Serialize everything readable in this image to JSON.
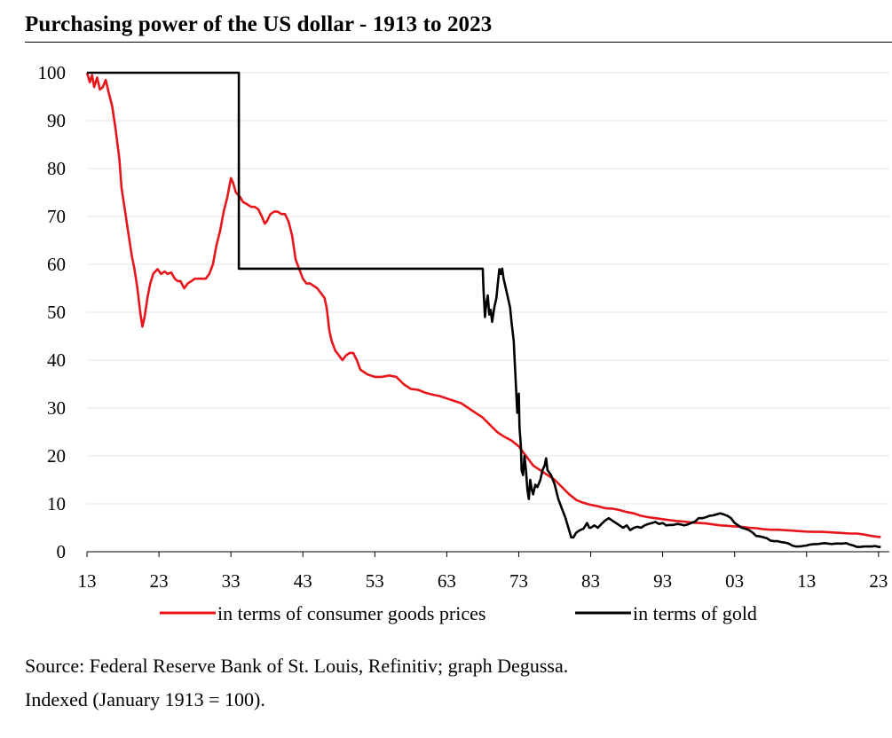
{
  "chart_data": {
    "type": "line",
    "title": "Purchasing power of the US dollar - 1913 to 2023",
    "xlabel": "",
    "ylabel": "",
    "xlim": [
      1913,
      2024.5
    ],
    "ylim": [
      0,
      100
    ],
    "x_ticks": [
      1913,
      1923,
      1933,
      1943,
      1953,
      1963,
      1973,
      1983,
      1993,
      2003,
      2013,
      2023
    ],
    "x_tick_labels": [
      "13",
      "23",
      "33",
      "43",
      "53",
      "63",
      "73",
      "83",
      "93",
      "03",
      "13",
      "23"
    ],
    "y_ticks": [
      0,
      10,
      20,
      30,
      40,
      50,
      60,
      70,
      80,
      90,
      100
    ],
    "y_tick_labels": [
      "0",
      "10",
      "20",
      "30",
      "40",
      "50",
      "60",
      "70",
      "80",
      "90",
      "100"
    ],
    "grid": "horizontal",
    "legend_position": "bottom",
    "series": [
      {
        "name": "in terms of consumer goods prices",
        "color": "#e8141a",
        "points": [
          [
            1913.0,
            100
          ],
          [
            1913.4,
            98
          ],
          [
            1913.7,
            99.5
          ],
          [
            1914.0,
            97
          ],
          [
            1914.4,
            99
          ],
          [
            1914.8,
            96.5
          ],
          [
            1915.2,
            97
          ],
          [
            1915.6,
            98.5
          ],
          [
            1916.0,
            96
          ],
          [
            1916.5,
            93
          ],
          [
            1917.0,
            88
          ],
          [
            1917.5,
            82
          ],
          [
            1917.8,
            76
          ],
          [
            1918.3,
            71
          ],
          [
            1918.8,
            66
          ],
          [
            1919.2,
            62
          ],
          [
            1919.6,
            59
          ],
          [
            1920.0,
            55
          ],
          [
            1920.4,
            50
          ],
          [
            1920.7,
            47
          ],
          [
            1921.0,
            49
          ],
          [
            1921.4,
            53
          ],
          [
            1921.8,
            56
          ],
          [
            1922.2,
            58
          ],
          [
            1922.8,
            59
          ],
          [
            1923.3,
            58
          ],
          [
            1923.8,
            58.5
          ],
          [
            1924.2,
            58
          ],
          [
            1924.7,
            58.3
          ],
          [
            1925.2,
            57
          ],
          [
            1925.6,
            56.5
          ],
          [
            1926.0,
            56.5
          ],
          [
            1926.5,
            55
          ],
          [
            1927.0,
            56
          ],
          [
            1927.5,
            56.5
          ],
          [
            1928.0,
            57
          ],
          [
            1928.5,
            57
          ],
          [
            1929.0,
            57
          ],
          [
            1929.5,
            57
          ],
          [
            1930.0,
            58
          ],
          [
            1930.5,
            60
          ],
          [
            1931.0,
            64
          ],
          [
            1931.5,
            67
          ],
          [
            1932.0,
            71
          ],
          [
            1932.5,
            74
          ],
          [
            1933.0,
            78
          ],
          [
            1933.3,
            77
          ],
          [
            1933.7,
            75
          ],
          [
            1934.3,
            74
          ],
          [
            1934.7,
            73
          ],
          [
            1935.3,
            72.5
          ],
          [
            1935.8,
            72
          ],
          [
            1936.3,
            72
          ],
          [
            1936.8,
            71.5
          ],
          [
            1937.3,
            70
          ],
          [
            1937.7,
            68.5
          ],
          [
            1938.0,
            69
          ],
          [
            1938.5,
            70.5
          ],
          [
            1939.0,
            71
          ],
          [
            1939.5,
            71
          ],
          [
            1940.0,
            70.5
          ],
          [
            1940.5,
            70.5
          ],
          [
            1941.0,
            69
          ],
          [
            1941.5,
            66
          ],
          [
            1942.0,
            61
          ],
          [
            1942.5,
            59
          ],
          [
            1943.0,
            57
          ],
          [
            1943.5,
            56
          ],
          [
            1944.0,
            56
          ],
          [
            1944.5,
            55.5
          ],
          [
            1945.0,
            55
          ],
          [
            1945.5,
            54
          ],
          [
            1946.0,
            53
          ],
          [
            1946.3,
            51
          ],
          [
            1946.7,
            46
          ],
          [
            1947.0,
            44
          ],
          [
            1947.5,
            42
          ],
          [
            1948.0,
            41
          ],
          [
            1948.5,
            40
          ],
          [
            1949.0,
            41
          ],
          [
            1949.5,
            41.5
          ],
          [
            1950.0,
            41.5
          ],
          [
            1950.5,
            40
          ],
          [
            1951.0,
            38
          ],
          [
            1951.5,
            37.5
          ],
          [
            1952.0,
            37
          ],
          [
            1953.0,
            36.5
          ],
          [
            1954.0,
            36.5
          ],
          [
            1955.0,
            36.8
          ],
          [
            1956.0,
            36.5
          ],
          [
            1957.0,
            35
          ],
          [
            1958.0,
            34
          ],
          [
            1959.0,
            33.8
          ],
          [
            1960.0,
            33.2
          ],
          [
            1961.0,
            32.8
          ],
          [
            1962.0,
            32.5
          ],
          [
            1963.0,
            32
          ],
          [
            1964.0,
            31.5
          ],
          [
            1965.0,
            31
          ],
          [
            1966.0,
            30
          ],
          [
            1967.0,
            29
          ],
          [
            1968.0,
            28
          ],
          [
            1969.0,
            26.5
          ],
          [
            1970.0,
            25
          ],
          [
            1971.0,
            24
          ],
          [
            1972.0,
            23.2
          ],
          [
            1973.0,
            22
          ],
          [
            1974.0,
            20
          ],
          [
            1975.0,
            18
          ],
          [
            1976.0,
            17
          ],
          [
            1977.0,
            16
          ],
          [
            1978.0,
            15
          ],
          [
            1979.0,
            13.5
          ],
          [
            1980.0,
            12
          ],
          [
            1981.0,
            10.8
          ],
          [
            1982.0,
            10.2
          ],
          [
            1983.0,
            9.8
          ],
          [
            1984.0,
            9.5
          ],
          [
            1985.0,
            9.1
          ],
          [
            1986.0,
            9
          ],
          [
            1987.0,
            8.7
          ],
          [
            1988.0,
            8.3
          ],
          [
            1989.0,
            8
          ],
          [
            1990.0,
            7.5
          ],
          [
            1991.0,
            7.2
          ],
          [
            1992.0,
            7
          ],
          [
            1993.0,
            6.8
          ],
          [
            1994.0,
            6.6
          ],
          [
            1995.0,
            6.4
          ],
          [
            1996.0,
            6.3
          ],
          [
            1997.0,
            6.1
          ],
          [
            1998.0,
            6
          ],
          [
            1999.0,
            5.9
          ],
          [
            2000.0,
            5.7
          ],
          [
            2001.0,
            5.5
          ],
          [
            2002.0,
            5.4
          ],
          [
            2003.0,
            5.3
          ],
          [
            2004.0,
            5.2
          ],
          [
            2005.0,
            5
          ],
          [
            2006.0,
            4.9
          ],
          [
            2007.0,
            4.7
          ],
          [
            2008.0,
            4.6
          ],
          [
            2009.0,
            4.6
          ],
          [
            2010.0,
            4.5
          ],
          [
            2011.0,
            4.4
          ],
          [
            2012.0,
            4.3
          ],
          [
            2013.0,
            4.2
          ],
          [
            2014.0,
            4.15
          ],
          [
            2015.0,
            4.15
          ],
          [
            2016.0,
            4.1
          ],
          [
            2017.0,
            4
          ],
          [
            2018.0,
            3.9
          ],
          [
            2019.0,
            3.8
          ],
          [
            2020.0,
            3.8
          ],
          [
            2021.0,
            3.6
          ],
          [
            2022.0,
            3.3
          ],
          [
            2023.0,
            3.1
          ],
          [
            2023.3,
            3.1
          ]
        ]
      },
      {
        "name": "in terms of gold",
        "color": "#000000",
        "points": [
          [
            1913.0,
            100
          ],
          [
            1934.1,
            100
          ],
          [
            1934.1,
            59.1
          ],
          [
            1968.0,
            59.1
          ],
          [
            1968.1,
            55
          ],
          [
            1968.3,
            49
          ],
          [
            1968.5,
            52
          ],
          [
            1968.7,
            53.5
          ],
          [
            1968.9,
            49.5
          ],
          [
            1969.1,
            50.5
          ],
          [
            1969.3,
            48
          ],
          [
            1969.6,
            51
          ],
          [
            1969.9,
            53
          ],
          [
            1970.1,
            56
          ],
          [
            1970.3,
            59
          ],
          [
            1970.5,
            58
          ],
          [
            1970.7,
            59.1
          ],
          [
            1970.9,
            57
          ],
          [
            1971.2,
            55
          ],
          [
            1971.5,
            53
          ],
          [
            1971.8,
            51
          ],
          [
            1972.0,
            48
          ],
          [
            1972.3,
            44
          ],
          [
            1972.5,
            38
          ],
          [
            1972.7,
            32
          ],
          [
            1972.8,
            29
          ],
          [
            1973.0,
            33
          ],
          [
            1973.1,
            26
          ],
          [
            1973.3,
            22
          ],
          [
            1973.4,
            17
          ],
          [
            1973.6,
            16
          ],
          [
            1973.8,
            20
          ],
          [
            1974.0,
            17
          ],
          [
            1974.2,
            13
          ],
          [
            1974.4,
            11
          ],
          [
            1974.6,
            15
          ],
          [
            1974.8,
            13
          ],
          [
            1975.0,
            12
          ],
          [
            1975.3,
            14
          ],
          [
            1975.6,
            13.5
          ],
          [
            1976.0,
            15
          ],
          [
            1976.3,
            17
          ],
          [
            1976.6,
            18
          ],
          [
            1976.8,
            19.5
          ],
          [
            1977.0,
            17
          ],
          [
            1977.5,
            16
          ],
          [
            1978.0,
            14
          ],
          [
            1978.5,
            11
          ],
          [
            1979.0,
            9
          ],
          [
            1979.5,
            7
          ],
          [
            1980.0,
            4.5
          ],
          [
            1980.3,
            3
          ],
          [
            1980.6,
            3
          ],
          [
            1981.0,
            4
          ],
          [
            1981.5,
            4.5
          ],
          [
            1982.0,
            4.8
          ],
          [
            1982.5,
            6
          ],
          [
            1982.8,
            5
          ],
          [
            1983.0,
            5
          ],
          [
            1983.5,
            5.5
          ],
          [
            1984.0,
            5
          ],
          [
            1984.5,
            5.8
          ],
          [
            1985.0,
            6.5
          ],
          [
            1985.5,
            7
          ],
          [
            1986.0,
            6.5
          ],
          [
            1986.5,
            6
          ],
          [
            1987.0,
            5.5
          ],
          [
            1987.5,
            5
          ],
          [
            1988.0,
            5.5
          ],
          [
            1988.5,
            4.5
          ],
          [
            1989.0,
            5
          ],
          [
            1989.5,
            5.2
          ],
          [
            1990.0,
            5
          ],
          [
            1990.5,
            5.5
          ],
          [
            1991.0,
            5.8
          ],
          [
            1991.5,
            6
          ],
          [
            1992.0,
            6.2
          ],
          [
            1992.5,
            5.8
          ],
          [
            1993.0,
            6
          ],
          [
            1993.5,
            5.5
          ],
          [
            1994.0,
            5.6
          ],
          [
            1994.5,
            5.6
          ],
          [
            1995.0,
            5.8
          ],
          [
            1995.5,
            5.7
          ],
          [
            1996.0,
            5.5
          ],
          [
            1996.5,
            5.7
          ],
          [
            1997.0,
            6
          ],
          [
            1997.5,
            6.3
          ],
          [
            1998.0,
            7
          ],
          [
            1998.5,
            7
          ],
          [
            1999.0,
            7.2
          ],
          [
            1999.5,
            7.5
          ],
          [
            2000.0,
            7.6
          ],
          [
            2000.5,
            7.8
          ],
          [
            2001.0,
            8
          ],
          [
            2001.5,
            7.8
          ],
          [
            2002.0,
            7.5
          ],
          [
            2002.5,
            7
          ],
          [
            2003.0,
            6
          ],
          [
            2003.5,
            5.5
          ],
          [
            2004.0,
            5
          ],
          [
            2004.5,
            4.8
          ],
          [
            2005.0,
            4.5
          ],
          [
            2005.5,
            4
          ],
          [
            2006.0,
            3.3
          ],
          [
            2006.5,
            3.2
          ],
          [
            2007.0,
            3
          ],
          [
            2007.5,
            2.8
          ],
          [
            2008.0,
            2.3
          ],
          [
            2008.5,
            2.2
          ],
          [
            2009.0,
            2.2
          ],
          [
            2009.5,
            2
          ],
          [
            2010.0,
            1.9
          ],
          [
            2010.5,
            1.7
          ],
          [
            2011.0,
            1.3
          ],
          [
            2011.5,
            1.1
          ],
          [
            2012.0,
            1.1
          ],
          [
            2012.5,
            1.2
          ],
          [
            2013.0,
            1.3
          ],
          [
            2013.5,
            1.5
          ],
          [
            2014.0,
            1.6
          ],
          [
            2014.5,
            1.6
          ],
          [
            2015.0,
            1.7
          ],
          [
            2015.5,
            1.8
          ],
          [
            2016.0,
            1.7
          ],
          [
            2016.5,
            1.6
          ],
          [
            2017.0,
            1.7
          ],
          [
            2017.5,
            1.7
          ],
          [
            2018.0,
            1.7
          ],
          [
            2018.5,
            1.8
          ],
          [
            2019.0,
            1.5
          ],
          [
            2019.5,
            1.3
          ],
          [
            2020.0,
            1
          ],
          [
            2020.5,
            1
          ],
          [
            2021.0,
            1.1
          ],
          [
            2021.5,
            1.1
          ],
          [
            2022.0,
            1.1
          ],
          [
            2022.5,
            1.2
          ],
          [
            2023.0,
            1
          ],
          [
            2023.3,
            1
          ]
        ]
      }
    ]
  },
  "footer": {
    "source": "Source: Federal Reserve Bank of St. Louis, Refinitiv; graph Degussa.",
    "note": "Indexed (January 1913 = 100)."
  }
}
